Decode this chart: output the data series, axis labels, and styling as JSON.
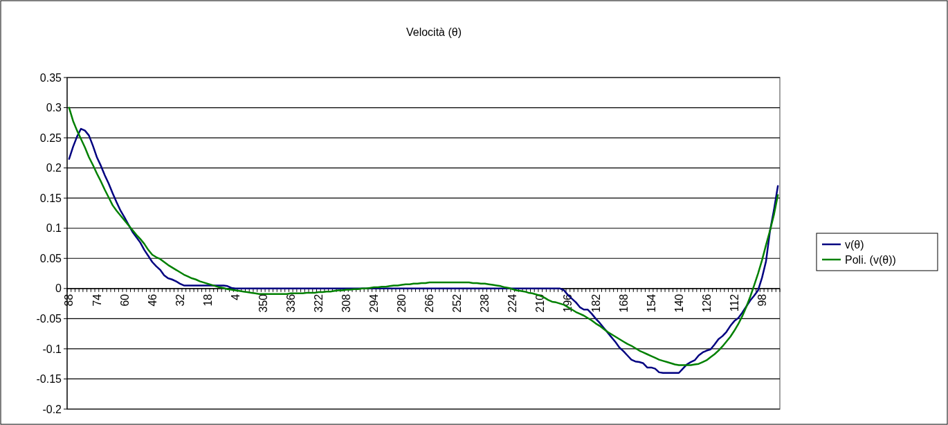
{
  "chart_data": {
    "type": "line",
    "title": "Velocità (θ)",
    "categories": [
      "88",
      null,
      null,
      null,
      null,
      null,
      null,
      "74",
      null,
      null,
      null,
      null,
      null,
      null,
      "60",
      null,
      null,
      null,
      null,
      null,
      null,
      "46",
      null,
      null,
      null,
      null,
      null,
      null,
      "32",
      null,
      null,
      null,
      null,
      null,
      null,
      "18",
      null,
      null,
      null,
      null,
      null,
      null,
      "4",
      null,
      null,
      null,
      null,
      null,
      null,
      "350",
      null,
      null,
      null,
      null,
      null,
      null,
      "336",
      null,
      null,
      null,
      null,
      null,
      null,
      "322",
      null,
      null,
      null,
      null,
      null,
      null,
      "308",
      null,
      null,
      null,
      null,
      null,
      null,
      "294",
      null,
      null,
      null,
      null,
      null,
      null,
      "280",
      null,
      null,
      null,
      null,
      null,
      null,
      "266",
      null,
      null,
      null,
      null,
      null,
      null,
      "252",
      null,
      null,
      null,
      null,
      null,
      null,
      "238",
      null,
      null,
      null,
      null,
      null,
      null,
      "224",
      null,
      null,
      null,
      null,
      null,
      null,
      "210",
      null,
      null,
      null,
      null,
      null,
      null,
      "196",
      null,
      null,
      null,
      null,
      null,
      null,
      "182",
      null,
      null,
      null,
      null,
      null,
      null,
      "168",
      null,
      null,
      null,
      null,
      null,
      null,
      "154",
      null,
      null,
      null,
      null,
      null,
      null,
      "140",
      null,
      null,
      null,
      null,
      null,
      null,
      "126",
      null,
      null,
      null,
      null,
      null,
      null,
      "112",
      null,
      null,
      null,
      null,
      null,
      null,
      "98",
      null,
      null,
      null,
      null
    ],
    "series": [
      {
        "name": "v(θ)",
        "color": "#000080",
        "values": [
          0.215,
          0.235,
          0.252,
          0.265,
          0.262,
          0.254,
          0.237,
          0.218,
          0.204,
          0.188,
          0.174,
          0.158,
          0.143,
          0.129,
          0.118,
          0.106,
          0.094,
          0.085,
          0.076,
          0.064,
          0.054,
          0.044,
          0.037,
          0.031,
          0.022,
          0.017,
          0.015,
          0.012,
          0.008,
          0.005,
          0.005,
          0.005,
          0.005,
          0.005,
          0.005,
          0.005,
          0.005,
          0.005,
          0.005,
          0.005,
          0.004,
          0.001,
          0,
          0,
          0,
          0,
          0,
          0,
          0,
          0,
          0,
          0,
          0,
          0,
          0,
          0,
          0,
          0,
          0,
          0,
          0,
          0,
          0,
          0,
          0,
          0,
          0,
          0,
          0,
          0,
          0,
          0,
          0,
          0,
          0,
          0,
          0,
          0,
          0,
          0,
          0,
          0,
          0,
          0,
          0,
          0,
          0,
          0,
          0,
          0,
          0,
          0,
          0,
          0,
          0,
          0,
          0,
          0,
          0,
          0,
          0,
          0,
          0,
          0,
          0,
          0,
          0,
          0,
          0,
          0,
          0,
          0,
          0,
          0,
          0,
          0,
          0,
          0,
          0,
          0,
          0,
          0,
          0,
          0,
          0,
          -0.003,
          -0.011,
          -0.017,
          -0.023,
          -0.031,
          -0.035,
          -0.035,
          -0.042,
          -0.05,
          -0.057,
          -0.065,
          -0.073,
          -0.081,
          -0.089,
          -0.098,
          -0.104,
          -0.111,
          -0.118,
          -0.121,
          -0.122,
          -0.124,
          -0.131,
          -0.131,
          -0.133,
          -0.139,
          -0.14,
          -0.14,
          -0.14,
          -0.14,
          -0.14,
          -0.133,
          -0.126,
          -0.122,
          -0.119,
          -0.111,
          -0.106,
          -0.103,
          -0.101,
          -0.093,
          -0.084,
          -0.079,
          -0.072,
          -0.062,
          -0.054,
          -0.049,
          -0.04,
          -0.03,
          -0.02,
          -0.012,
          -0.003,
          0.018,
          0.045,
          0.095,
          0.13,
          0.17
        ]
      },
      {
        "name": "Poli. (v(θ))",
        "color": "#008000",
        "values": [
          0.3,
          0.278,
          0.262,
          0.248,
          0.234,
          0.218,
          0.205,
          0.191,
          0.178,
          0.164,
          0.151,
          0.138,
          0.129,
          0.121,
          0.113,
          0.105,
          0.097,
          0.089,
          0.082,
          0.074,
          0.064,
          0.056,
          0.052,
          0.049,
          0.044,
          0.039,
          0.035,
          0.031,
          0.027,
          0.023,
          0.02,
          0.017,
          0.015,
          0.012,
          0.01,
          0.008,
          0.006,
          0.004,
          0.002,
          0.001,
          -0.001,
          -0.002,
          -0.003,
          -0.004,
          -0.005,
          -0.006,
          -0.007,
          -0.008,
          -0.009,
          -0.009,
          -0.009,
          -0.009,
          -0.009,
          -0.009,
          -0.009,
          -0.009,
          -0.008,
          -0.008,
          -0.008,
          -0.008,
          -0.007,
          -0.007,
          -0.007,
          -0.006,
          -0.006,
          -0.005,
          -0.005,
          -0.004,
          -0.003,
          -0.003,
          -0.002,
          -0.002,
          -0.001,
          -0.001,
          0,
          0,
          0.001,
          0.002,
          0.002,
          0.003,
          0.003,
          0.004,
          0.005,
          0.005,
          0.006,
          0.007,
          0.007,
          0.008,
          0.008,
          0.009,
          0.009,
          0.01,
          0.01,
          0.01,
          0.01,
          0.01,
          0.01,
          0.01,
          0.01,
          0.01,
          0.01,
          0.01,
          0.009,
          0.009,
          0.008,
          0.008,
          0.007,
          0.006,
          0.005,
          0.004,
          0.002,
          0.001,
          -0.001,
          -0.003,
          -0.004,
          -0.005,
          -0.007,
          -0.008,
          -0.01,
          -0.012,
          -0.015,
          -0.019,
          -0.022,
          -0.023,
          -0.025,
          -0.027,
          -0.031,
          -0.035,
          -0.039,
          -0.042,
          -0.045,
          -0.049,
          -0.053,
          -0.058,
          -0.062,
          -0.067,
          -0.072,
          -0.076,
          -0.08,
          -0.084,
          -0.088,
          -0.092,
          -0.095,
          -0.099,
          -0.103,
          -0.106,
          -0.109,
          -0.112,
          -0.115,
          -0.118,
          -0.12,
          -0.122,
          -0.124,
          -0.126,
          -0.127,
          -0.127,
          -0.127,
          -0.127,
          -0.126,
          -0.125,
          -0.122,
          -0.119,
          -0.114,
          -0.109,
          -0.103,
          -0.096,
          -0.088,
          -0.08,
          -0.07,
          -0.059,
          -0.046,
          -0.031,
          -0.014,
          0.005,
          0.025,
          0.047,
          0.072,
          0.096,
          0.122,
          0.155
        ]
      }
    ],
    "ylim": [
      -0.2,
      0.35
    ],
    "yticks": [
      -0.2,
      -0.15,
      -0.1,
      -0.05,
      0,
      0.05,
      0.1,
      0.15,
      0.2,
      0.25,
      0.3,
      0.35
    ],
    "grid": "y",
    "legend": "right"
  }
}
